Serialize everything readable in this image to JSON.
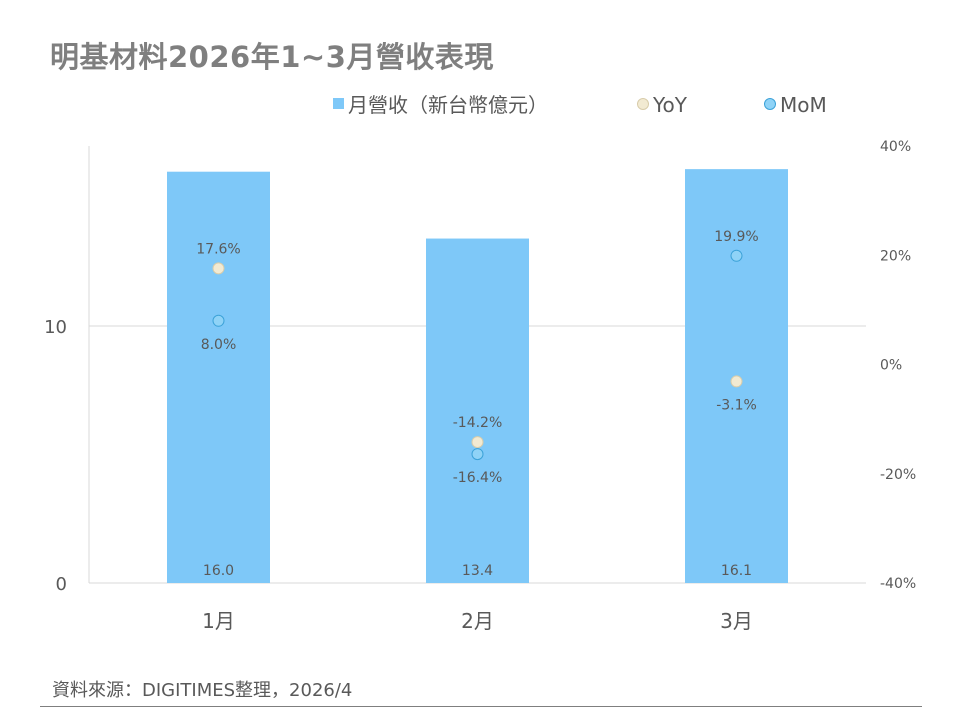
{
  "title": "明基材料2026年1~3月營收表現",
  "source": "資料來源：DIGITIMES整理，2026/4",
  "colors": {
    "bar": "#7ec8f8",
    "yoy_fill": "#f2ead2",
    "mom_fill": "#8fd3f7",
    "mom_stroke": "#3ca2d8",
    "grid": "#d9d9d9",
    "text": "#595959"
  },
  "legend": [
    {
      "label": "月營收（新台幣億元）",
      "marker": "square"
    },
    {
      "label": "YoY",
      "marker": "circle"
    },
    {
      "label": "MoM",
      "marker": "circle"
    }
  ],
  "chart_data": {
    "type": "bar",
    "categories": [
      "1月",
      "2月",
      "3月"
    ],
    "series": [
      {
        "name": "月營收（新台幣億元）",
        "type": "bar",
        "axis": "left",
        "values": [
          16.0,
          13.4,
          16.1
        ],
        "labels": [
          "16.0",
          "13.4",
          "16.1"
        ]
      },
      {
        "name": "YoY",
        "type": "scatter",
        "axis": "right",
        "values": [
          17.6,
          -14.2,
          -3.1
        ],
        "labels": [
          "17.6%",
          "-14.2%",
          "-3.1%"
        ]
      },
      {
        "name": "MoM",
        "type": "scatter",
        "axis": "right",
        "values": [
          8.0,
          -16.4,
          19.9
        ],
        "labels": [
          "8.0%",
          "-16.4%",
          "19.9%"
        ]
      }
    ],
    "y_left": {
      "range": [
        0,
        17
      ],
      "ticks": [
        0,
        10
      ],
      "tick_labels": [
        "0",
        "10"
      ]
    },
    "y_right": {
      "range": [
        -40,
        40
      ],
      "ticks": [
        -40,
        -20,
        0,
        20,
        40
      ],
      "tick_labels": [
        "-40%",
        "-20%",
        "0%",
        "20%",
        "40%"
      ]
    },
    "grid": true,
    "legend_position": "top"
  }
}
